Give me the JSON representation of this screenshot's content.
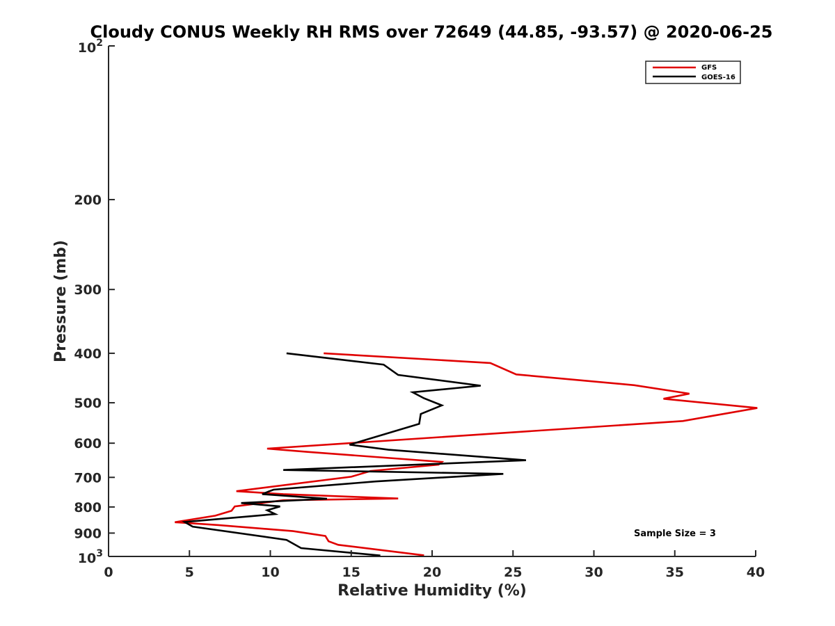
{
  "chart_data": {
    "type": "line",
    "title": "Cloudy CONUS Weekly RH RMS over 72649 (44.85, -93.57) @ 2020-06-25",
    "xlabel": "Relative Humidity (%)",
    "ylabel": "Pressure (mb)",
    "xlim": [
      0,
      40
    ],
    "ylim": [
      100,
      1000
    ],
    "yscale": "log",
    "y_reversed": true,
    "grid": false,
    "legend_position": "top-right",
    "xticks": [
      "0",
      "5",
      "10",
      "15",
      "20",
      "25",
      "30",
      "35",
      "40"
    ],
    "yticks": [
      {
        "value": 100,
        "base": "10",
        "exp": "2"
      },
      {
        "value": 200,
        "label": "200"
      },
      {
        "value": 300,
        "label": "300"
      },
      {
        "value": 400,
        "label": "400"
      },
      {
        "value": 500,
        "label": "500"
      },
      {
        "value": 600,
        "label": "600"
      },
      {
        "value": 700,
        "label": "700"
      },
      {
        "value": 800,
        "label": "800"
      },
      {
        "value": 900,
        "label": "900"
      },
      {
        "value": 1000,
        "base": "10",
        "exp": "3"
      }
    ],
    "series": [
      {
        "name": "GFS",
        "color": "#e00000",
        "x": [
          13.3,
          23.6,
          25.2,
          32.5,
          35.9,
          34.3,
          40.1,
          35.5,
          9.8,
          12.3,
          20.6,
          20.4,
          16.2,
          15.0,
          7.9,
          10.8,
          17.9,
          10.8,
          7.8,
          7.6,
          6.6,
          4.1,
          6.8,
          11.4,
          13.4,
          13.6,
          14.2,
          19.5
        ],
        "y": [
          400,
          418,
          440,
          462,
          480,
          491,
          512,
          543,
          615,
          624,
          653,
          661,
          680,
          698,
          745,
          755,
          770,
          776,
          798,
          814,
          832,
          857,
          868,
          892,
          912,
          934,
          949,
          995
        ]
      },
      {
        "name": "GOES-16",
        "color": "#000000",
        "x": [
          11.0,
          17.0,
          17.9,
          23.0,
          18.8,
          19.5,
          20.6,
          19.3,
          19.2,
          14.9,
          17.3,
          25.8,
          10.8,
          24.4,
          16.5,
          10.2,
          9.9,
          9.5,
          13.5,
          8.2,
          10.6,
          9.8,
          10.3,
          4.7,
          5.2,
          11.0,
          11.9,
          16.8
        ]
      }
    ],
    "goes_y": [
      400,
      421,
      441,
      463,
      477,
      490,
      506,
      526,
      550,
      604,
      618,
      648,
      677,
      689,
      713,
      740,
      746,
      755,
      771,
      786,
      798,
      812,
      826,
      856,
      874,
      928,
      963,
      996
    ],
    "annotation": "Sample Size = 3"
  }
}
